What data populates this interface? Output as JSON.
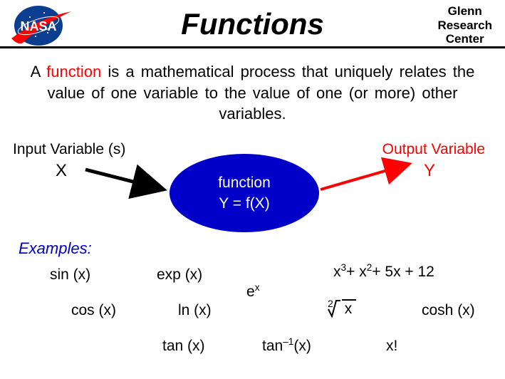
{
  "header": {
    "title": "Functions",
    "center_line1": "Glenn",
    "center_line2": "Research",
    "center_line3": "Center",
    "logo": {
      "bg_color": "#0b3d91",
      "swoosh_color": "#ff0000",
      "text": "NASA",
      "text_color": "#ffffff"
    }
  },
  "definition": {
    "prefix": "A ",
    "keyword": "function",
    "rest": " is a mathematical process that uniquely relates the value of one variable to the value of one (or more) other variables."
  },
  "diagram": {
    "input_label": "Input  Variable (s)",
    "input_var": "X",
    "output_label": "Output  Variable",
    "output_var": "Y",
    "ellipse_line1": "function",
    "ellipse_line2": "Y  =  f(X)",
    "ellipse_color": "#0000c8",
    "input_arrow_color": "#000000",
    "output_arrow_color": "#ff0000"
  },
  "examples": {
    "label": "Examples:",
    "label_color": "#0000c8",
    "items": {
      "sin": "sin (x)",
      "cos": "cos (x)",
      "exp": "exp (x)",
      "ln": "ln (x)",
      "tan": "tan (x)",
      "e_base": "e",
      "e_exp": "x",
      "poly_html": "x<sup>3</sup>+  x<sup>2</sup>+ 5x + 12",
      "sqrt_index": "2",
      "sqrt_body": "x",
      "cosh": "cosh (x)",
      "atan_html": "tan<sup>–1</sup>(x)",
      "factorial": "x!"
    }
  },
  "colors": {
    "red": "#ff0000",
    "blue": "#0000c8",
    "black": "#000000",
    "white": "#ffffff"
  }
}
